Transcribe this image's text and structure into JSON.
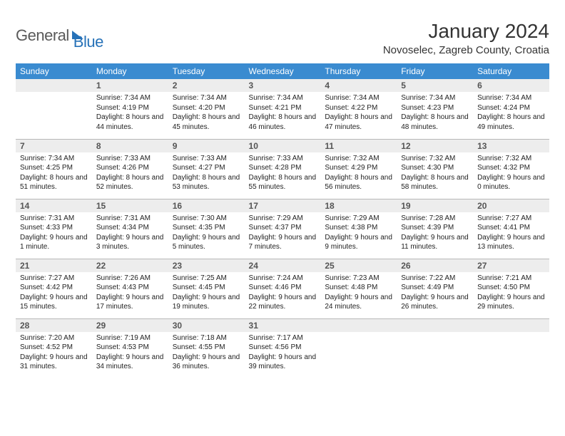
{
  "brand": {
    "part1": "General",
    "part2": "Blue"
  },
  "title": "January 2024",
  "location": "Novoselec, Zagreb County, Croatia",
  "colors": {
    "header_bg": "#3a8bd0",
    "header_text": "#ffffff",
    "daynum_bg": "#ededed",
    "rule": "#b8b8b8",
    "brand_blue": "#2772b8"
  },
  "weekdays": [
    "Sunday",
    "Monday",
    "Tuesday",
    "Wednesday",
    "Thursday",
    "Friday",
    "Saturday"
  ],
  "weeks": [
    [
      null,
      {
        "n": "1",
        "sunrise": "7:34 AM",
        "sunset": "4:19 PM",
        "day": "8 hours and 44 minutes."
      },
      {
        "n": "2",
        "sunrise": "7:34 AM",
        "sunset": "4:20 PM",
        "day": "8 hours and 45 minutes."
      },
      {
        "n": "3",
        "sunrise": "7:34 AM",
        "sunset": "4:21 PM",
        "day": "8 hours and 46 minutes."
      },
      {
        "n": "4",
        "sunrise": "7:34 AM",
        "sunset": "4:22 PM",
        "day": "8 hours and 47 minutes."
      },
      {
        "n": "5",
        "sunrise": "7:34 AM",
        "sunset": "4:23 PM",
        "day": "8 hours and 48 minutes."
      },
      {
        "n": "6",
        "sunrise": "7:34 AM",
        "sunset": "4:24 PM",
        "day": "8 hours and 49 minutes."
      }
    ],
    [
      {
        "n": "7",
        "sunrise": "7:34 AM",
        "sunset": "4:25 PM",
        "day": "8 hours and 51 minutes."
      },
      {
        "n": "8",
        "sunrise": "7:33 AM",
        "sunset": "4:26 PM",
        "day": "8 hours and 52 minutes."
      },
      {
        "n": "9",
        "sunrise": "7:33 AM",
        "sunset": "4:27 PM",
        "day": "8 hours and 53 minutes."
      },
      {
        "n": "10",
        "sunrise": "7:33 AM",
        "sunset": "4:28 PM",
        "day": "8 hours and 55 minutes."
      },
      {
        "n": "11",
        "sunrise": "7:32 AM",
        "sunset": "4:29 PM",
        "day": "8 hours and 56 minutes."
      },
      {
        "n": "12",
        "sunrise": "7:32 AM",
        "sunset": "4:30 PM",
        "day": "8 hours and 58 minutes."
      },
      {
        "n": "13",
        "sunrise": "7:32 AM",
        "sunset": "4:32 PM",
        "day": "9 hours and 0 minutes."
      }
    ],
    [
      {
        "n": "14",
        "sunrise": "7:31 AM",
        "sunset": "4:33 PM",
        "day": "9 hours and 1 minute."
      },
      {
        "n": "15",
        "sunrise": "7:31 AM",
        "sunset": "4:34 PM",
        "day": "9 hours and 3 minutes."
      },
      {
        "n": "16",
        "sunrise": "7:30 AM",
        "sunset": "4:35 PM",
        "day": "9 hours and 5 minutes."
      },
      {
        "n": "17",
        "sunrise": "7:29 AM",
        "sunset": "4:37 PM",
        "day": "9 hours and 7 minutes."
      },
      {
        "n": "18",
        "sunrise": "7:29 AM",
        "sunset": "4:38 PM",
        "day": "9 hours and 9 minutes."
      },
      {
        "n": "19",
        "sunrise": "7:28 AM",
        "sunset": "4:39 PM",
        "day": "9 hours and 11 minutes."
      },
      {
        "n": "20",
        "sunrise": "7:27 AM",
        "sunset": "4:41 PM",
        "day": "9 hours and 13 minutes."
      }
    ],
    [
      {
        "n": "21",
        "sunrise": "7:27 AM",
        "sunset": "4:42 PM",
        "day": "9 hours and 15 minutes."
      },
      {
        "n": "22",
        "sunrise": "7:26 AM",
        "sunset": "4:43 PM",
        "day": "9 hours and 17 minutes."
      },
      {
        "n": "23",
        "sunrise": "7:25 AM",
        "sunset": "4:45 PM",
        "day": "9 hours and 19 minutes."
      },
      {
        "n": "24",
        "sunrise": "7:24 AM",
        "sunset": "4:46 PM",
        "day": "9 hours and 22 minutes."
      },
      {
        "n": "25",
        "sunrise": "7:23 AM",
        "sunset": "4:48 PM",
        "day": "9 hours and 24 minutes."
      },
      {
        "n": "26",
        "sunrise": "7:22 AM",
        "sunset": "4:49 PM",
        "day": "9 hours and 26 minutes."
      },
      {
        "n": "27",
        "sunrise": "7:21 AM",
        "sunset": "4:50 PM",
        "day": "9 hours and 29 minutes."
      }
    ],
    [
      {
        "n": "28",
        "sunrise": "7:20 AM",
        "sunset": "4:52 PM",
        "day": "9 hours and 31 minutes."
      },
      {
        "n": "29",
        "sunrise": "7:19 AM",
        "sunset": "4:53 PM",
        "day": "9 hours and 34 minutes."
      },
      {
        "n": "30",
        "sunrise": "7:18 AM",
        "sunset": "4:55 PM",
        "day": "9 hours and 36 minutes."
      },
      {
        "n": "31",
        "sunrise": "7:17 AM",
        "sunset": "4:56 PM",
        "day": "9 hours and 39 minutes."
      },
      null,
      null,
      null
    ]
  ]
}
